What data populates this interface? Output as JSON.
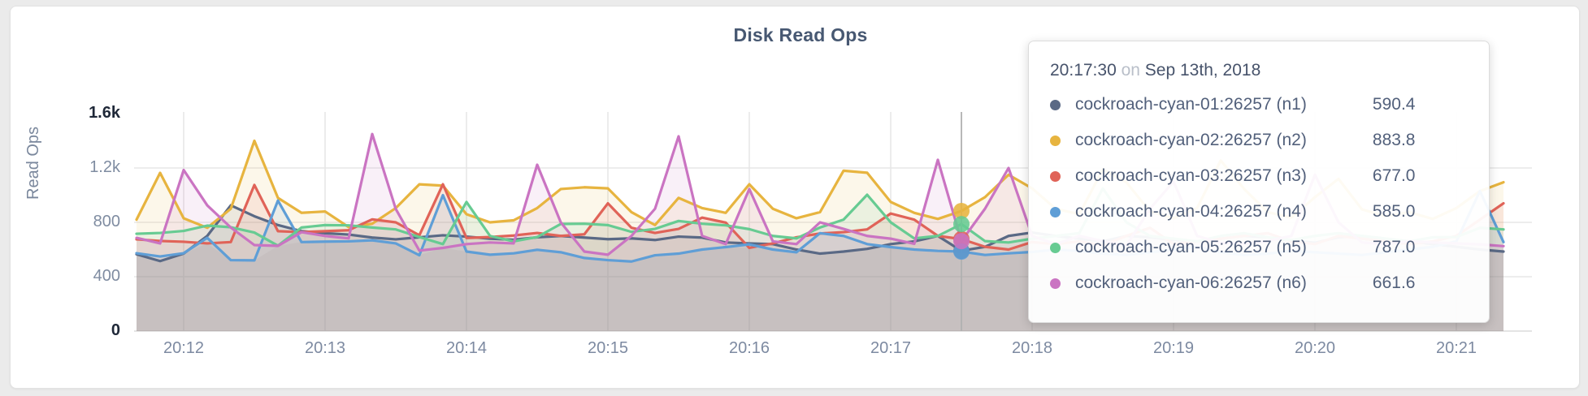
{
  "page": {
    "background": "#ebebeb",
    "card_background": "#ffffff"
  },
  "chart_data": {
    "type": "line",
    "title": "Disk Read Ops",
    "ylabel": "Read Ops",
    "xlabel": "",
    "ylim": [
      0,
      1600
    ],
    "grid": true,
    "legend_position": "tooltip-only",
    "time_start": "20:11:40",
    "sample_interval_seconds": 10,
    "x_ticks": {
      "labels": [
        "20:12",
        "20:13",
        "20:14",
        "20:15",
        "20:16",
        "20:17",
        "20:18",
        "20:19",
        "20:20",
        "20:21"
      ],
      "indices": [
        2,
        8,
        14,
        20,
        26,
        32,
        38,
        44,
        50,
        56
      ]
    },
    "y_ticks": [
      {
        "value": 0,
        "label": "0",
        "strong": true
      },
      {
        "value": 400,
        "label": "400",
        "strong": false
      },
      {
        "value": 800,
        "label": "800",
        "strong": false
      },
      {
        "value": 1200,
        "label": "1.2k",
        "strong": false
      },
      {
        "value": 1600,
        "label": "1.6k",
        "strong": true
      }
    ],
    "series": [
      {
        "name": "cockroach-cyan-01:26257 (n1)",
        "color": "#5a6985",
        "values": [
          565,
          515,
          570,
          700,
          925,
          845,
          780,
          735,
          720,
          710,
          688,
          675,
          690,
          705,
          695,
          680,
          672,
          690,
          700,
          688,
          676,
          682,
          670,
          695,
          688,
          652,
          645,
          640,
          600,
          570,
          585,
          605,
          640,
          660,
          700,
          590.4,
          620,
          700,
          725,
          700,
          680,
          660,
          700,
          690,
          670,
          660,
          680,
          700,
          690,
          665,
          650,
          690,
          700,
          680,
          660,
          640,
          620,
          600,
          585
        ]
      },
      {
        "name": "cockroach-cyan-02:26257 (n2)",
        "color": "#e7b43f",
        "values": [
          820,
          1164,
          830,
          760,
          900,
          1400,
          980,
          870,
          880,
          765,
          790,
          905,
          1080,
          1070,
          860,
          800,
          815,
          905,
          1045,
          1058,
          1050,
          875,
          780,
          980,
          905,
          870,
          1080,
          900,
          830,
          875,
          1180,
          1165,
          950,
          870,
          825,
          883.8,
          985,
          1150,
          1050,
          900,
          860,
          1190,
          1095,
          880,
          830,
          905,
          1255,
          1045,
          875,
          835,
          985,
          1120,
          895,
          845,
          875,
          825,
          905,
          1030,
          1095
        ]
      },
      {
        "name": "cockroach-cyan-03:26257 (n3)",
        "color": "#e06358",
        "values": [
          675,
          663,
          657,
          645,
          655,
          1075,
          735,
          728,
          735,
          742,
          822,
          800,
          705,
          1080,
          685,
          692,
          703,
          722,
          700,
          712,
          940,
          760,
          722,
          752,
          835,
          798,
          612,
          645,
          690,
          718,
          728,
          748,
          865,
          820,
          700,
          677,
          620,
          600,
          655,
          640,
          660,
          630,
          700,
          760,
          640,
          660,
          680,
          700,
          720,
          660,
          640,
          700,
          680,
          660,
          640,
          660,
          700,
          820,
          940
        ]
      },
      {
        "name": "cockroach-cyan-04:26257 (n4)",
        "color": "#5f9ed6",
        "values": [
          573,
          549,
          573,
          686,
          522,
          520,
          960,
          655,
          658,
          660,
          668,
          645,
          558,
          1000,
          585,
          562,
          572,
          598,
          580,
          538,
          522,
          512,
          558,
          570,
          600,
          618,
          638,
          600,
          580,
          720,
          700,
          640,
          618,
          600,
          590,
          585,
          560,
          572,
          582,
          600,
          590,
          570,
          560,
          580,
          600,
          620,
          580,
          560,
          570,
          590,
          580,
          570,
          560,
          580,
          600,
          620,
          660,
          1030,
          655
        ]
      },
      {
        "name": "cockroach-cyan-05:26257 (n5)",
        "color": "#67cb92",
        "values": [
          716,
          722,
          737,
          776,
          764,
          725,
          628,
          762,
          780,
          778,
          762,
          748,
          692,
          640,
          950,
          700,
          660,
          692,
          788,
          790,
          780,
          730,
          752,
          810,
          790,
          778,
          750,
          700,
          682,
          762,
          820,
          1003,
          800,
          682,
          700,
          787,
          662,
          652,
          680,
          700,
          720,
          1050,
          800,
          700,
          680,
          660,
          700,
          720,
          690,
          670,
          700,
          720,
          700,
          680,
          660,
          690,
          692,
          760,
          748
        ]
      },
      {
        "name": "cockroach-cyan-06:26257 (n6)",
        "color": "#ca74c2",
        "values": [
          686,
          645,
          1185,
          925,
          762,
          633,
          627,
          728,
          700,
          682,
          1450,
          898,
          592,
          612,
          640,
          652,
          645,
          1224,
          800,
          585,
          562,
          700,
          900,
          1433,
          700,
          640,
          1045,
          660,
          640,
          800,
          752,
          700,
          680,
          642,
          1260,
          661.6,
          900,
          1200,
          700,
          640,
          700,
          662,
          630,
          900,
          1100,
          700,
          650,
          642,
          662,
          700,
          1150,
          800,
          652,
          640,
          662,
          652,
          645,
          638,
          625
        ]
      }
    ],
    "hover": {
      "index": 35,
      "time": "20:17:30",
      "on_word": "on",
      "date": "Sep 13th, 2018",
      "values": [
        "590.4",
        "883.8",
        "677.0",
        "585.0",
        "787.0",
        "661.6"
      ]
    },
    "colors": {
      "gridline": "#e7e7e7",
      "zero_line": "#dcdcdc",
      "hover_line": "#b0b0b0",
      "under_fill": "rgba(115,110,96,0.08)",
      "axis_text": "#7d8aa1",
      "axis_text_strong": "#1f2838",
      "title_text": "#475872"
    }
  }
}
